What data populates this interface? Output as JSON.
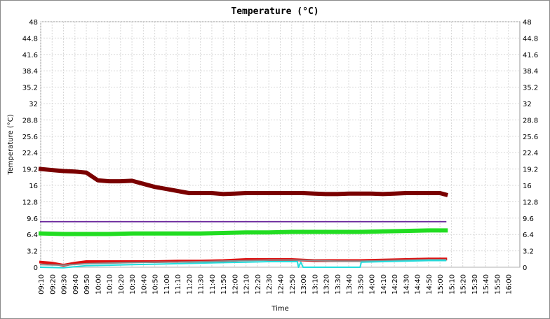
{
  "chart_data": {
    "type": "line",
    "title": "Temperature (°C)",
    "xlabel": "Time",
    "ylabel": "Temperature (°C)",
    "ylim": [
      0,
      48
    ],
    "y_ticks": [
      0,
      3.2,
      6.4,
      9.6,
      12.8,
      16,
      19.2,
      22.4,
      25.6,
      28.8,
      32,
      35.2,
      38.4,
      41.6,
      44.8,
      48
    ],
    "x_ticks": [
      "09:10",
      "09:20",
      "09:30",
      "09:40",
      "09:50",
      "10:00",
      "10:10",
      "10:20",
      "10:30",
      "10:40",
      "10:50",
      "11:00",
      "11:10",
      "11:20",
      "11:30",
      "11:40",
      "11:50",
      "12:00",
      "12:10",
      "12:20",
      "12:30",
      "12:40",
      "12:50",
      "13:00",
      "13:10",
      "13:20",
      "13:30",
      "13:40",
      "13:50",
      "14:00",
      "14:10",
      "14:20",
      "14:30",
      "14:40",
      "14:50",
      "15:00",
      "15:10",
      "15:20",
      "15:30",
      "15:40",
      "15:50",
      "16:00"
    ],
    "grid": true,
    "series": [
      {
        "color": "#7a0000",
        "x": [
          "09:10",
          "09:20",
          "09:30",
          "09:40",
          "09:50",
          "10:00",
          "10:10",
          "10:20",
          "10:30",
          "10:40",
          "10:50",
          "11:00",
          "11:10",
          "11:20",
          "11:30",
          "11:40",
          "11:50",
          "12:00",
          "12:10",
          "12:20",
          "12:30",
          "12:40",
          "12:50",
          "13:00",
          "13:10",
          "13:20",
          "13:30",
          "13:40",
          "13:50",
          "14:00",
          "14:10",
          "14:20",
          "14:30",
          "14:40",
          "14:50",
          "15:00",
          "15:05"
        ],
        "values": [
          19.2,
          19.0,
          18.8,
          18.7,
          18.5,
          17.0,
          16.8,
          16.8,
          16.9,
          16.3,
          15.7,
          15.3,
          14.9,
          14.5,
          14.5,
          14.5,
          14.3,
          14.4,
          14.5,
          14.5,
          14.5,
          14.5,
          14.5,
          14.5,
          14.4,
          14.3,
          14.3,
          14.4,
          14.4,
          14.4,
          14.3,
          14.4,
          14.5,
          14.5,
          14.5,
          14.5,
          14.2
        ]
      },
      {
        "color": "#7030a0",
        "x": [
          "09:10",
          "15:05"
        ],
        "values": [
          8.9,
          8.9
        ]
      },
      {
        "color": "#22dd22",
        "x": [
          "09:10",
          "09:30",
          "09:50",
          "10:10",
          "10:30",
          "10:50",
          "11:10",
          "11:30",
          "11:50",
          "12:10",
          "12:30",
          "12:50",
          "13:10",
          "13:30",
          "13:50",
          "14:10",
          "14:30",
          "14:50",
          "15:05"
        ],
        "values": [
          6.6,
          6.5,
          6.5,
          6.5,
          6.6,
          6.6,
          6.6,
          6.6,
          6.7,
          6.8,
          6.8,
          6.9,
          6.9,
          6.9,
          6.9,
          7.0,
          7.1,
          7.2,
          7.2
        ]
      },
      {
        "color": "#dd1111",
        "x": [
          "09:10",
          "09:20",
          "09:30",
          "09:40",
          "09:50",
          "10:10",
          "10:30",
          "10:50",
          "11:10",
          "11:30",
          "11:50",
          "12:10",
          "12:30",
          "12:50",
          "13:00",
          "13:10",
          "13:30",
          "13:50",
          "14:10",
          "14:30",
          "14:50",
          "15:05"
        ],
        "values": [
          1.0,
          0.8,
          0.4,
          0.8,
          1.1,
          1.1,
          1.1,
          1.1,
          1.2,
          1.2,
          1.3,
          1.5,
          1.5,
          1.5,
          1.4,
          1.3,
          1.3,
          1.3,
          1.4,
          1.5,
          1.6,
          1.6
        ]
      },
      {
        "color": "#8b8b8b",
        "x": [
          "09:10",
          "09:30",
          "09:50",
          "10:10",
          "10:30",
          "10:50",
          "11:10",
          "11:30",
          "11:50",
          "12:10",
          "12:30",
          "12:50",
          "13:10",
          "13:30",
          "13:50",
          "14:10",
          "14:30",
          "14:50",
          "15:05"
        ],
        "values": [
          0.5,
          0.4,
          0.7,
          0.8,
          0.9,
          1.0,
          1.0,
          1.1,
          1.2,
          1.3,
          1.4,
          1.4,
          1.3,
          1.2,
          1.2,
          1.3,
          1.4,
          1.5,
          1.5
        ]
      },
      {
        "color": "#22dddd",
        "x": [
          "09:10",
          "09:30",
          "09:50",
          "10:10",
          "10:30",
          "10:50",
          "11:10",
          "11:30",
          "11:50",
          "12:10",
          "12:30",
          "12:50",
          "12:55",
          "12:56",
          "12:58",
          "13:00",
          "13:01",
          "13:50",
          "13:51",
          "14:10",
          "14:30",
          "14:50",
          "15:05"
        ],
        "values": [
          0.0,
          -0.1,
          0.3,
          0.4,
          0.5,
          0.6,
          0.7,
          0.8,
          0.9,
          1.0,
          1.1,
          1.1,
          1.1,
          0.0,
          1.0,
          0.0,
          0.0,
          0.0,
          1.0,
          1.1,
          1.2,
          1.3,
          1.3
        ]
      }
    ]
  }
}
